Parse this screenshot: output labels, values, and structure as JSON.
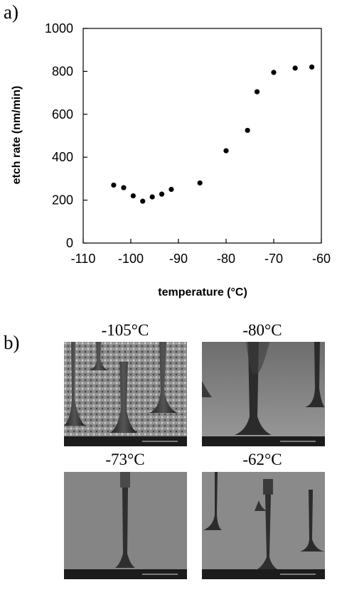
{
  "panel_labels": {
    "a": "a)",
    "b": "b)"
  },
  "chart_data": {
    "type": "scatter",
    "xlabel": "temperature (°C)",
    "ylabel": "etch rate (nm/min)",
    "xlim": [
      -110,
      -60
    ],
    "ylim": [
      0,
      1000
    ],
    "xticks": [
      -110,
      -100,
      -90,
      -80,
      -70,
      -60
    ],
    "yticks": [
      0,
      200,
      400,
      600,
      800,
      1000
    ],
    "grid": false,
    "points": [
      {
        "x": -103.6,
        "y": 270
      },
      {
        "x": -101.5,
        "y": 258
      },
      {
        "x": -99.5,
        "y": 220
      },
      {
        "x": -97.5,
        "y": 195
      },
      {
        "x": -95.5,
        "y": 215
      },
      {
        "x": -93.5,
        "y": 228
      },
      {
        "x": -91.5,
        "y": 250
      },
      {
        "x": -85.5,
        "y": 280
      },
      {
        "x": -80,
        "y": 430
      },
      {
        "x": -75.5,
        "y": 525
      },
      {
        "x": -73.5,
        "y": 705
      },
      {
        "x": -70,
        "y": 795
      },
      {
        "x": -65.5,
        "y": 815
      },
      {
        "x": -62,
        "y": 820
      }
    ]
  },
  "sem_images": [
    {
      "title": "-105°C"
    },
    {
      "title": "-80°C"
    },
    {
      "title": "-73°C"
    },
    {
      "title": "-62°C"
    }
  ]
}
